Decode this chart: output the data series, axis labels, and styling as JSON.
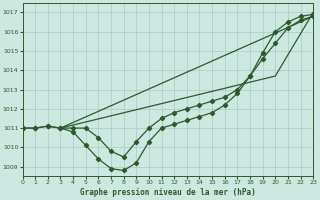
{
  "title": "Graphe pression niveau de la mer (hPa)",
  "bg_color": "#cce8e0",
  "line_color": "#2d5a2d",
  "grid_color": "#a8ccc4",
  "xlim": [
    0,
    23
  ],
  "ylim": [
    1008.5,
    1017.5
  ],
  "yticks": [
    1009,
    1010,
    1011,
    1012,
    1013,
    1014,
    1015,
    1016,
    1017
  ],
  "xticks": [
    0,
    1,
    2,
    3,
    4,
    5,
    6,
    7,
    8,
    9,
    10,
    11,
    12,
    13,
    14,
    15,
    16,
    17,
    18,
    19,
    20,
    21,
    22,
    23
  ],
  "series_with_markers": [
    {
      "x": [
        0,
        1,
        2,
        3,
        4,
        5,
        6,
        7,
        8,
        9,
        10,
        11,
        12,
        13,
        14,
        15,
        16,
        17,
        18,
        19,
        20,
        21,
        22,
        23
      ],
      "y": [
        1011.0,
        1011.0,
        1011.1,
        1011.0,
        1010.8,
        1010.1,
        1009.4,
        1008.9,
        1008.8,
        1009.2,
        1010.3,
        1011.0,
        1011.2,
        1011.4,
        1011.6,
        1011.8,
        1012.2,
        1012.8,
        1013.7,
        1014.6,
        1015.4,
        1016.2,
        1016.6,
        1016.8
      ]
    },
    {
      "x": [
        0,
        1,
        2,
        3,
        4,
        5,
        6,
        7,
        8,
        9,
        10,
        11,
        12,
        13,
        14,
        15,
        16,
        17,
        18,
        19,
        20,
        21,
        22,
        23
      ],
      "y": [
        1011.0,
        1011.0,
        1011.1,
        1011.0,
        1011.0,
        1011.0,
        1010.5,
        1009.8,
        1009.5,
        1010.3,
        1011.0,
        1011.5,
        1011.8,
        1012.0,
        1012.2,
        1012.4,
        1012.6,
        1013.0,
        1013.7,
        1014.9,
        1016.0,
        1016.5,
        1016.8,
        1016.9
      ]
    }
  ],
  "series_no_markers": [
    {
      "x": [
        3,
        23
      ],
      "y": [
        1011.0,
        1016.8
      ]
    },
    {
      "x": [
        3,
        20,
        23
      ],
      "y": [
        1011.0,
        1013.7,
        1017.0
      ]
    }
  ]
}
